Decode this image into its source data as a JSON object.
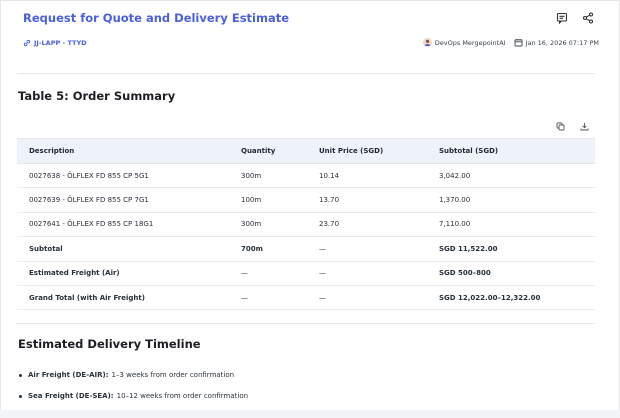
{
  "header": {
    "title": "Request for Quote and Delivery Estimate",
    "project": "JJ-LAPP - TTYD",
    "author": "DevOps MergepointAI",
    "date": "Jan 16, 2026 07:17 PM"
  },
  "summary": {
    "title": "Table 5: Order Summary",
    "columns": [
      "Description",
      "Quantity",
      "Unit Price (SGD)",
      "Subtotal (SGD)"
    ],
    "rows": [
      [
        "0027638 - ÖLFLEX FD 855 CP 5G1",
        "300m",
        "10.14",
        "3,042.00"
      ],
      [
        "0027639 - ÖLFLEX FD 855 CP 7G1",
        "100m",
        "13.70",
        "1,370.00"
      ],
      [
        "0027641 - ÖLFLEX FD 855 CP 18G1",
        "300m",
        "23.70",
        "7,110.00"
      ],
      [
        "Subtotal",
        "700m",
        "—",
        "SGD 11,522.00"
      ],
      [
        "Estimated Freight (Air)",
        "—",
        "—",
        "SGD 500–800"
      ],
      [
        "Grand Total (with Air Freight)",
        "—",
        "—",
        "SGD 12,022.00–12,322.00"
      ]
    ]
  },
  "timeline": {
    "title": "Estimated Delivery Timeline",
    "items": [
      {
        "label": "Air Freight (DE-AIR):",
        "text": "1–3 weeks from order confirmation"
      },
      {
        "label": "Sea Freight (DE-SEA):",
        "text": "10–12 weeks from order confirmation"
      }
    ]
  },
  "icons": {
    "comment": "comment-icon",
    "share": "share-icon",
    "link": "link-icon",
    "user": "user-avatar-icon",
    "calendar": "calendar-icon",
    "copy": "copy-icon",
    "download": "download-icon"
  },
  "colors": {
    "accent": "#4a5fe0",
    "table_header_bg": "#eef3f9"
  }
}
